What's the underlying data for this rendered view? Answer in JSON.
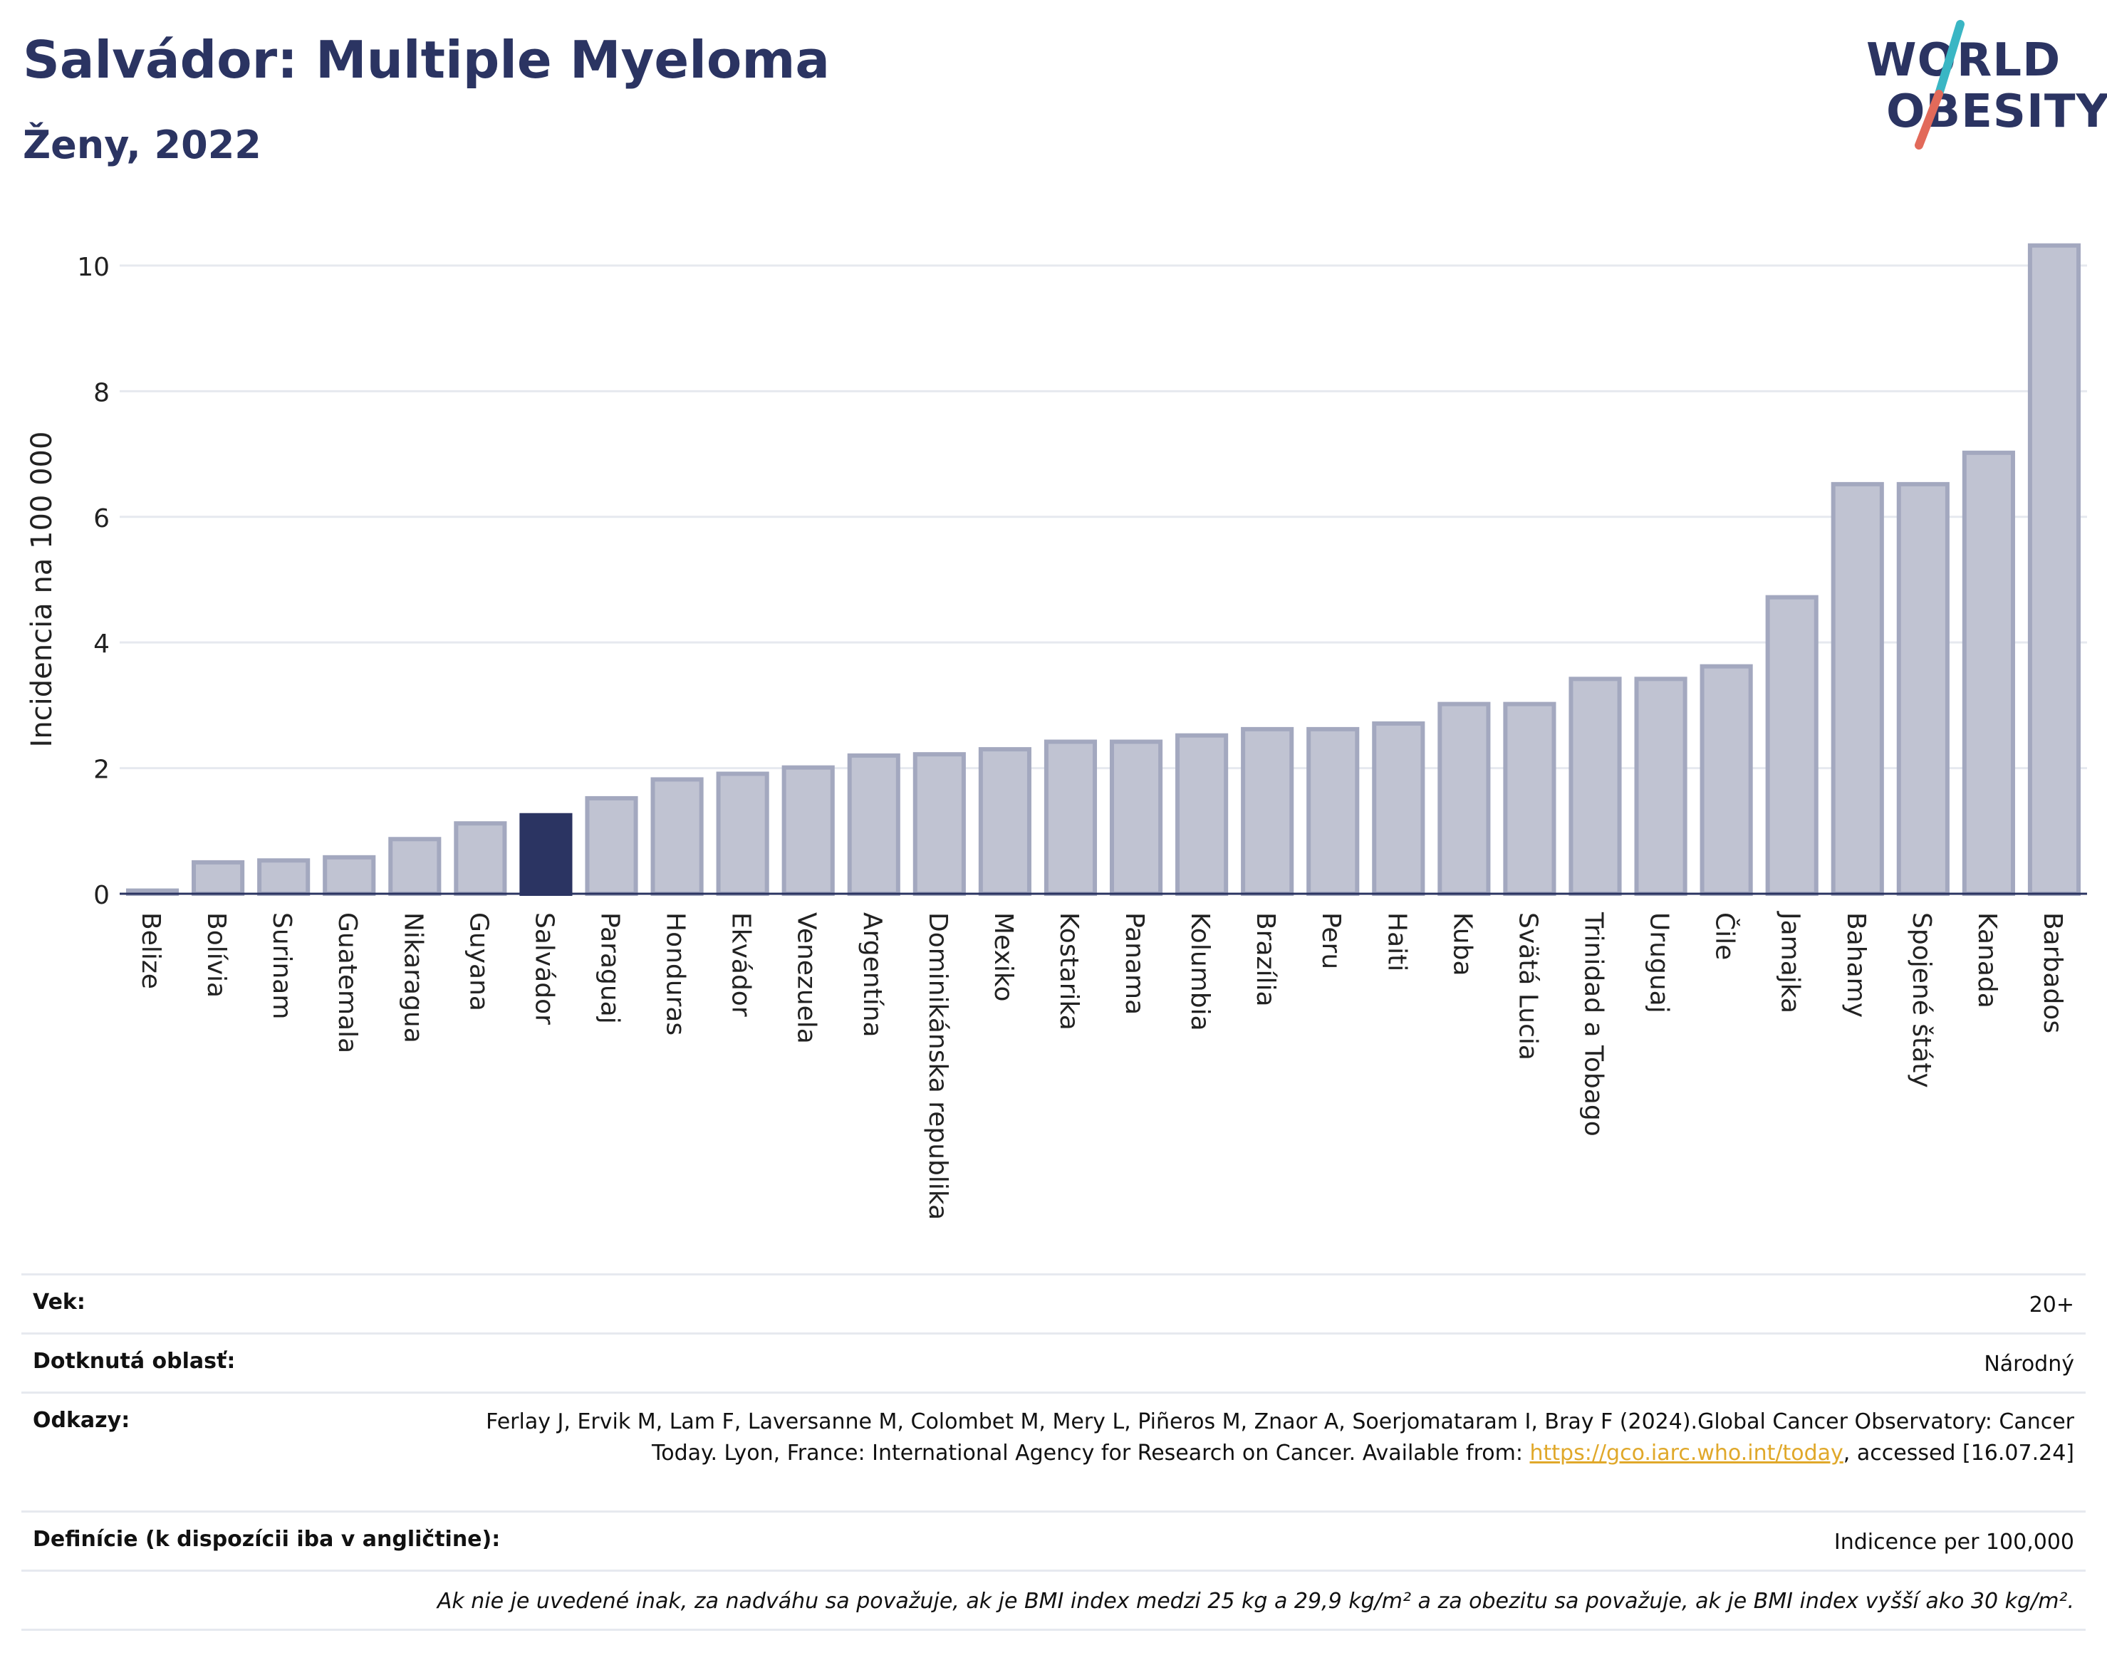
{
  "header": {
    "title": "Salvádor: Multiple Myeloma",
    "subtitle": "Ženy, 2022"
  },
  "logo": {
    "line1": "WORLD",
    "line2": "OBESITY",
    "colors": {
      "text": "#2b3462",
      "slash_top": "#3ab6c4",
      "slash_bottom": "#e26a5a"
    }
  },
  "colors": {
    "bar": "#c0c3d2",
    "bar_border": "#a3a8bf",
    "highlight": "#2b3462",
    "grid": "#e6e9ef",
    "axis": "#2b3462"
  },
  "chart_data": {
    "type": "bar",
    "ylabel": "Incidencia na 100 000",
    "ylim": [
      0,
      10.6
    ],
    "yticks": [
      0,
      2,
      4,
      6,
      8,
      10
    ],
    "grid": true,
    "highlight": "Salvádor",
    "categories": [
      "Belize",
      "Bolívia",
      "Surinam",
      "Guatemala",
      "Nikaragua",
      "Guyana",
      "Salvádor",
      "Paraguaj",
      "Honduras",
      "Ekvádor",
      "Venezuela",
      "Argentína",
      "Dominikánska republika",
      "Mexiko",
      "Kostarika",
      "Panama",
      "Kolumbia",
      "Brazília",
      "Peru",
      "Haiti",
      "Kuba",
      "Svätá Lucia",
      "Trinidad a Tobago",
      "Uruguaj",
      "Čile",
      "Jamajka",
      "Bahamy",
      "Spojené štáty",
      "Kanada",
      "Barbados"
    ],
    "values": [
      0.05,
      0.5,
      0.53,
      0.58,
      0.87,
      1.12,
      1.25,
      1.52,
      1.82,
      1.91,
      2.01,
      2.2,
      2.22,
      2.3,
      2.42,
      2.42,
      2.52,
      2.62,
      2.62,
      2.71,
      3.02,
      3.02,
      3.42,
      3.42,
      3.62,
      4.72,
      6.52,
      6.52,
      7.02,
      10.32
    ]
  },
  "info": {
    "age_label": "Vek:",
    "age_value": "20+",
    "area_label": "Dotknutá oblasť:",
    "area_value": "Národný",
    "refs_label": "Odkazy:",
    "refs_text_1": "Ferlay J, Ervik M, Lam F, Laversanne M, Colombet M, Mery L, Piñeros M, Znaor A, Soerjomataram I, Bray F (2024).Global Cancer Observatory: Cancer Today. Lyon, France: International Agency for Research on Cancer. Available from: ",
    "refs_link": "https://gco.iarc.who.int/today",
    "refs_text_2": ", accessed [16.07.24]",
    "def_label": "Definície (k dispozícii iba v angličtine):",
    "def_value": "Indicence per 100,000",
    "note": "Ak nie je uvedené inak, za nadváhu sa považuje, ak je BMI index medzi 25 kg a 29,9 kg/m² a za obezitu sa považuje, ak je BMI index vyšší ako 30 kg/m²."
  }
}
